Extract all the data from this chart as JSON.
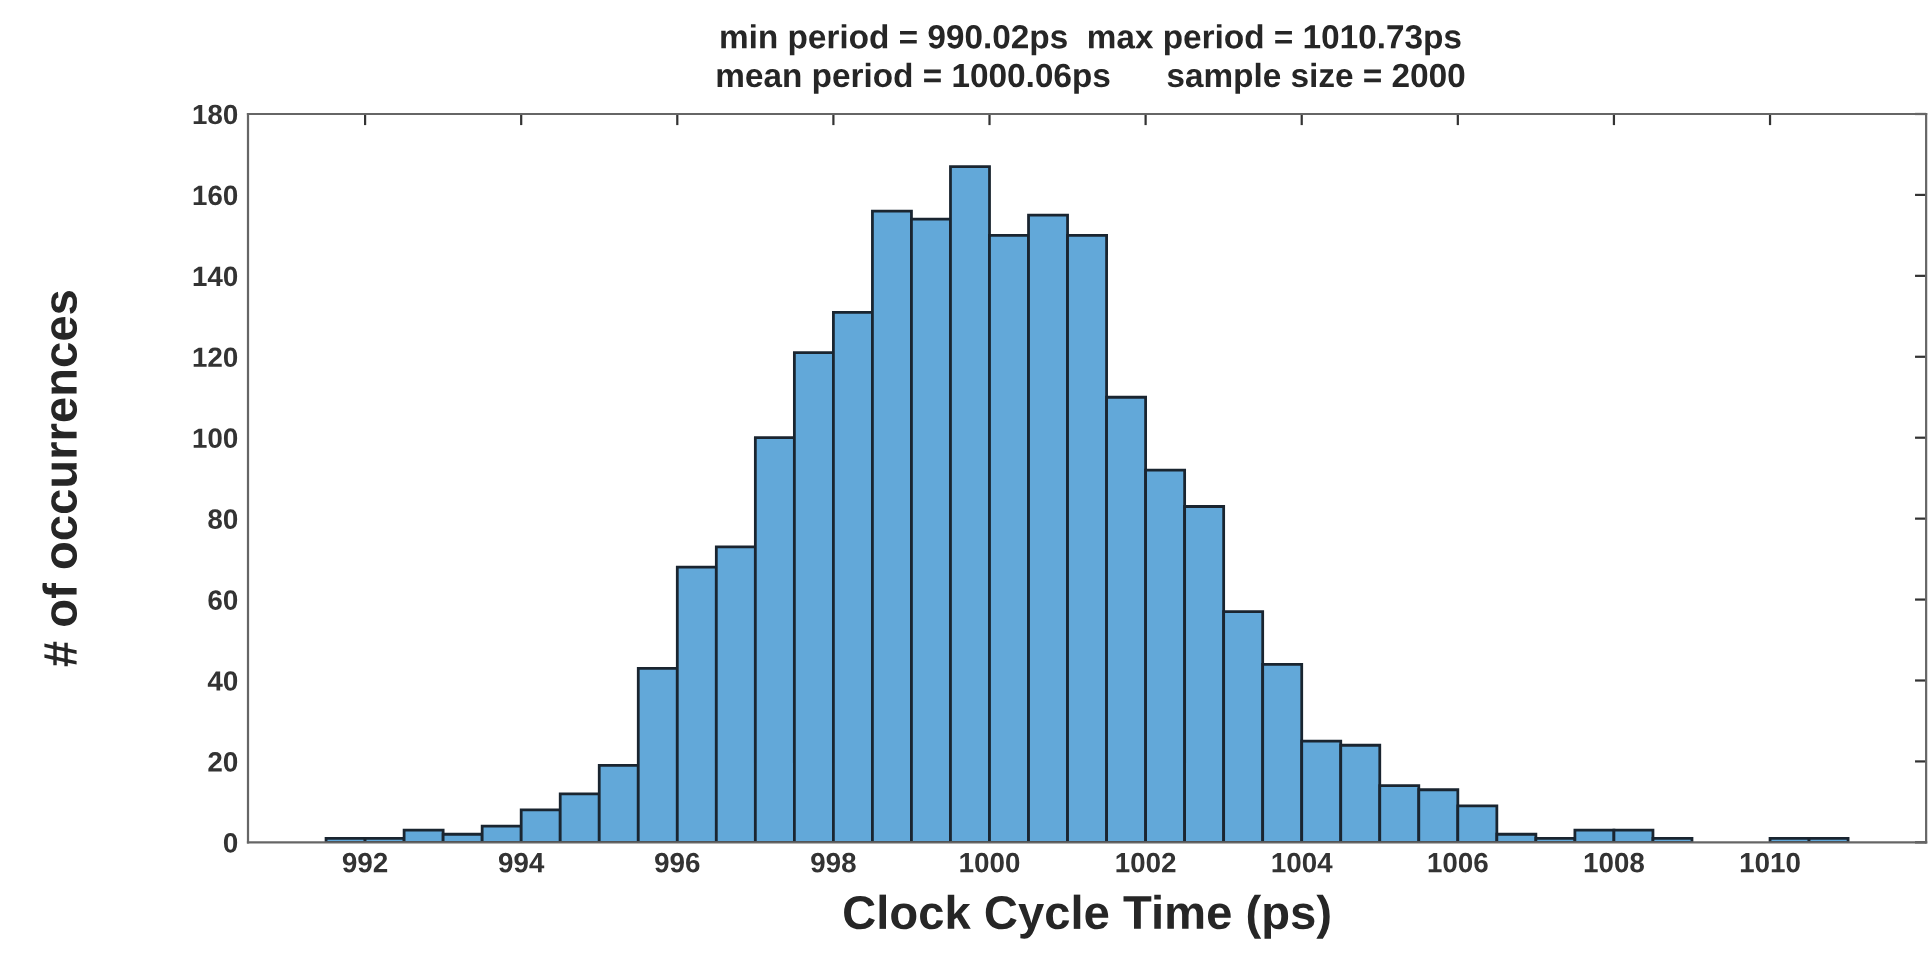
{
  "chart_data": {
    "type": "histogram",
    "title": "min period = 990.02ps  max period = 1010.73ps",
    "subtitle": "mean period = 1000.06ps      sample size = 2000",
    "xlabel": "Clock Cycle Time (ps)",
    "ylabel": "# of occurrences",
    "color": "#62a8d9",
    "bins": [
      991.5,
      992,
      992.5,
      993,
      993.5,
      994,
      994.5,
      995,
      995.5,
      996,
      996.5,
      997,
      997.5,
      998,
      998.5,
      999,
      999.5,
      1000,
      1000.5,
      1001,
      1001.5,
      1002,
      1002.5,
      1003,
      1003.5,
      1004,
      1004.5,
      1005,
      1005.5,
      1006,
      1006.5,
      1007,
      1007.5,
      1008,
      1008.5,
      1009,
      1009.5,
      1010,
      1010.5,
      1011
    ],
    "values": [
      1,
      1,
      3,
      2,
      4,
      8,
      12,
      19,
      43,
      68,
      73,
      100,
      121,
      131,
      156,
      154,
      167,
      150,
      155,
      150,
      110,
      92,
      83,
      57,
      44,
      25,
      24,
      14,
      13,
      9,
      2,
      1,
      3,
      3,
      1,
      0,
      0,
      1,
      1
    ],
    "xlim": [
      990.5,
      1012
    ],
    "xticks": [
      992,
      994,
      996,
      998,
      1000,
      1002,
      1004,
      1006,
      1008,
      1010
    ],
    "ylim": [
      0,
      180
    ],
    "yticks": [
      0,
      20,
      40,
      60,
      80,
      100,
      120,
      140,
      160,
      180
    ],
    "grid": false,
    "legend": false
  }
}
